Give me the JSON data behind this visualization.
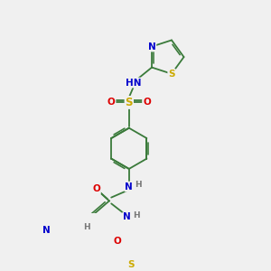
{
  "background_color": "#f0f0f0",
  "bond_color": "#3a7a3a",
  "atom_colors": {
    "N": "#0000cc",
    "O": "#dd0000",
    "S": "#ccaa00",
    "H": "#777777",
    "C": "#3a7a3a"
  },
  "font_size_atom": 7.5,
  "line_width": 1.3
}
